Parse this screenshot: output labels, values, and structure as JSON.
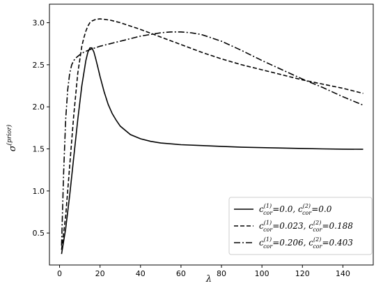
{
  "chart_data": {
    "type": "line",
    "title": "",
    "xlabel": "λ",
    "ylabel_main": "σ",
    "ylabel_sup": "(prior)",
    "xlim": [
      -5,
      155
    ],
    "ylim": [
      0.12,
      3.22
    ],
    "xticks": [
      0,
      20,
      40,
      60,
      80,
      100,
      120,
      140
    ],
    "yticks": [
      0.5,
      1.0,
      1.5,
      2.0,
      2.5,
      3.0
    ],
    "ytick_labels": [
      "0.5",
      "1.0",
      "1.5",
      "2.0",
      "2.5",
      "3.0"
    ],
    "grid": false,
    "legend_position": "lower-right",
    "series": [
      {
        "legend": {
          "c1": "=0.0, ",
          "c2": "=0.0"
        },
        "dash": "solid",
        "x": [
          1,
          3,
          5,
          7,
          9,
          11,
          13,
          14,
          15,
          16,
          17,
          18,
          19,
          20,
          22,
          24,
          26,
          28,
          30,
          35,
          40,
          45,
          50,
          60,
          70,
          80,
          90,
          100,
          110,
          120,
          130,
          140,
          150
        ],
        "y": [
          0.25,
          0.55,
          0.95,
          1.4,
          1.85,
          2.25,
          2.55,
          2.65,
          2.7,
          2.7,
          2.65,
          2.56,
          2.46,
          2.36,
          2.18,
          2.03,
          1.92,
          1.84,
          1.77,
          1.67,
          1.62,
          1.59,
          1.57,
          1.55,
          1.54,
          1.53,
          1.52,
          1.515,
          1.51,
          1.505,
          1.5,
          1.497,
          1.495
        ]
      },
      {
        "legend": {
          "c1": "=0.023, ",
          "c2": "=0.188"
        },
        "dash": "dashed",
        "x": [
          1,
          3,
          5,
          7,
          9,
          11,
          12,
          13,
          14,
          15,
          16,
          18,
          20,
          22,
          25,
          30,
          35,
          40,
          50,
          60,
          70,
          80,
          90,
          100,
          110,
          120,
          130,
          140,
          150
        ],
        "y": [
          0.3,
          0.7,
          1.3,
          1.9,
          2.4,
          2.72,
          2.82,
          2.9,
          2.96,
          3.0,
          3.02,
          3.04,
          3.045,
          3.04,
          3.03,
          3.0,
          2.96,
          2.92,
          2.83,
          2.74,
          2.65,
          2.57,
          2.5,
          2.44,
          2.38,
          2.32,
          2.27,
          2.22,
          2.16
        ]
      },
      {
        "legend": {
          "c1": "=0.206, ",
          "c2": "=0.403"
        },
        "dash": "dashdot",
        "x": [
          1,
          2,
          3,
          4,
          5,
          6,
          7,
          8,
          10,
          12,
          15,
          20,
          25,
          30,
          40,
          50,
          55,
          60,
          65,
          70,
          80,
          90,
          100,
          110,
          120,
          130,
          140,
          150
        ],
        "y": [
          0.35,
          1.2,
          1.85,
          2.2,
          2.4,
          2.5,
          2.55,
          2.58,
          2.62,
          2.65,
          2.68,
          2.72,
          2.75,
          2.78,
          2.84,
          2.88,
          2.89,
          2.89,
          2.88,
          2.86,
          2.78,
          2.67,
          2.55,
          2.44,
          2.33,
          2.23,
          2.12,
          2.02
        ]
      }
    ]
  }
}
